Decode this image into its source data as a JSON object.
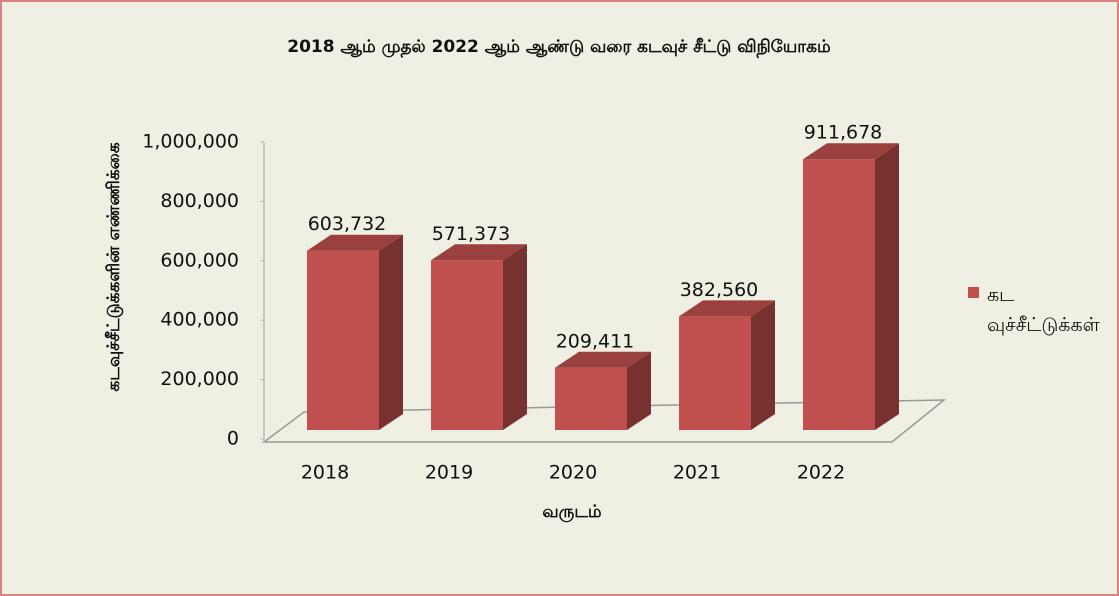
{
  "chart_data": {
    "type": "bar3d",
    "title": "2018 ஆம் முதல் 2022 ஆம் ஆண்டு வரை கடவுச் சீட்டு விநியோகம்",
    "x_label": "வருடம்",
    "y_label": "கடவுச்சீட்டுக்களின் எண்ணிக்கை",
    "categories": [
      "2018",
      "2019",
      "2020",
      "2021",
      "2022"
    ],
    "series": [
      {
        "name": "கடவுச்சீட்டுக்கள்",
        "color": "#c0504d",
        "values": [
          603732,
          571373,
          209411,
          382560,
          911678
        ],
        "value_labels": [
          "603,732",
          "571,373",
          "209,411",
          "382,560",
          "911,678"
        ]
      }
    ],
    "ylim": [
      0,
      1000000
    ],
    "yticks": [
      0,
      {
        "value": 200000,
        "label": "200,000"
      },
      {
        "value": 400000,
        "label": "400,000"
      },
      {
        "value": 600000,
        "label": "600,000"
      },
      {
        "value": 800000,
        "label": "800,000"
      },
      {
        "value": 1000000,
        "label": "1,000,000"
      }
    ],
    "legend": "right"
  }
}
